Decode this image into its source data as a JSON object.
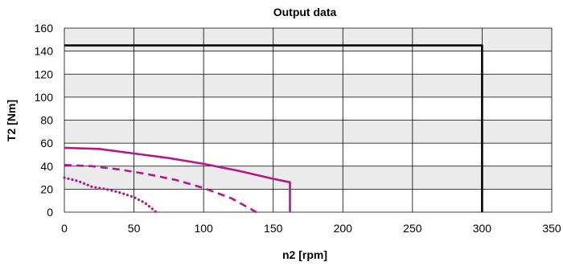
{
  "chart_data": {
    "type": "line",
    "title": "Output data",
    "xlabel": "n2 [rpm]",
    "ylabel": "T2 [Nm]",
    "xlim": [
      0,
      350
    ],
    "ylim": [
      0,
      160
    ],
    "x_ticks": [
      0,
      50,
      100,
      150,
      200,
      250,
      300,
      350
    ],
    "y_ticks": [
      0,
      20,
      40,
      60,
      80,
      100,
      120,
      140,
      160
    ],
    "grid": true,
    "band_color": "#ebebeb",
    "grid_color": "#000000",
    "series": [
      {
        "color": "#000000",
        "style": "solid",
        "points": [
          [
            0,
            145
          ],
          [
            300,
            145
          ],
          [
            300,
            0
          ]
        ]
      },
      {
        "color": "#b5168c",
        "style": "solid",
        "points": [
          [
            0,
            56
          ],
          [
            25,
            55
          ],
          [
            50,
            51
          ],
          [
            75,
            47
          ],
          [
            100,
            42
          ],
          [
            125,
            36
          ],
          [
            150,
            29
          ],
          [
            162,
            26
          ],
          [
            162,
            0
          ]
        ]
      },
      {
        "color": "#b5168c",
        "style": "dashed",
        "points": [
          [
            0,
            41
          ],
          [
            20,
            40
          ],
          [
            40,
            37
          ],
          [
            60,
            33
          ],
          [
            80,
            28
          ],
          [
            100,
            21
          ],
          [
            120,
            12
          ],
          [
            138,
            0
          ]
        ]
      },
      {
        "color": "#b5168c",
        "style": "dotted",
        "points": [
          [
            0,
            30
          ],
          [
            10,
            27
          ],
          [
            20,
            22
          ],
          [
            30,
            20
          ],
          [
            40,
            17
          ],
          [
            50,
            13
          ],
          [
            58,
            8
          ],
          [
            66,
            0
          ]
        ]
      }
    ]
  }
}
